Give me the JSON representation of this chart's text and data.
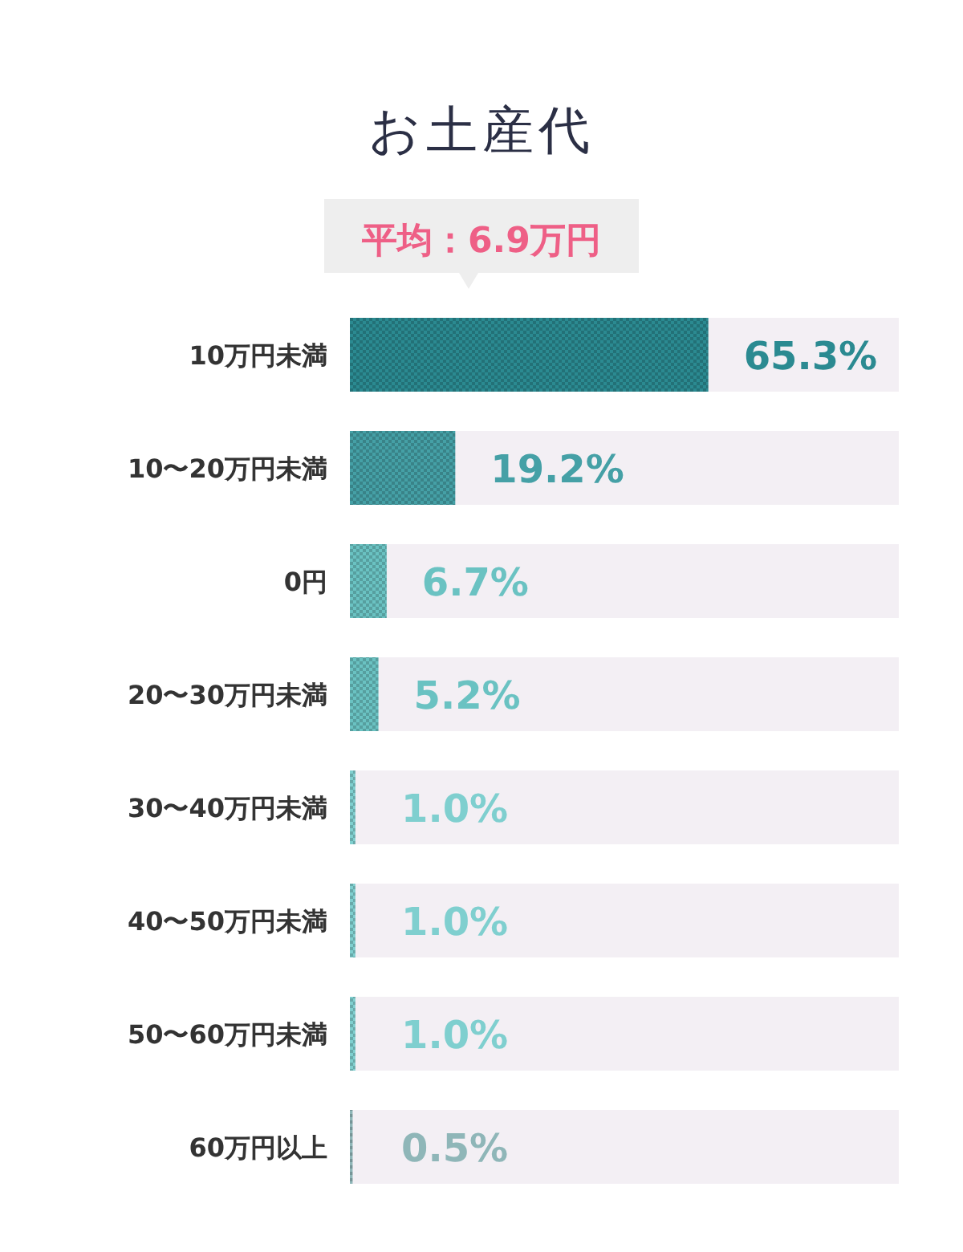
{
  "chart_data": {
    "type": "bar",
    "orientation": "horizontal",
    "title": "お土産代",
    "annotations": [
      "平均：6.9万円"
    ],
    "categories": [
      "10万円未満",
      "10〜20万円未満",
      "0円",
      "20〜30万円未満",
      "30〜40万円未満",
      "40〜50万円未満",
      "50〜60万円未満",
      "60万円以上"
    ],
    "values": [
      65.3,
      19.2,
      6.7,
      5.2,
      1.0,
      1.0,
      1.0,
      0.5
    ],
    "value_labels": [
      "65.3%",
      "19.2%",
      "6.7%",
      "5.2%",
      "1.0%",
      "1.0%",
      "1.0%",
      "0.5%"
    ],
    "colors": [
      "#2b8a91",
      "#45a0a6",
      "#6ac2c2",
      "#6ac2c2",
      "#7fcfcf",
      "#7fcfcf",
      "#7fcfcf",
      "#8fb6b8"
    ],
    "xlim": [
      0,
      100
    ],
    "tick_labels": "y"
  }
}
